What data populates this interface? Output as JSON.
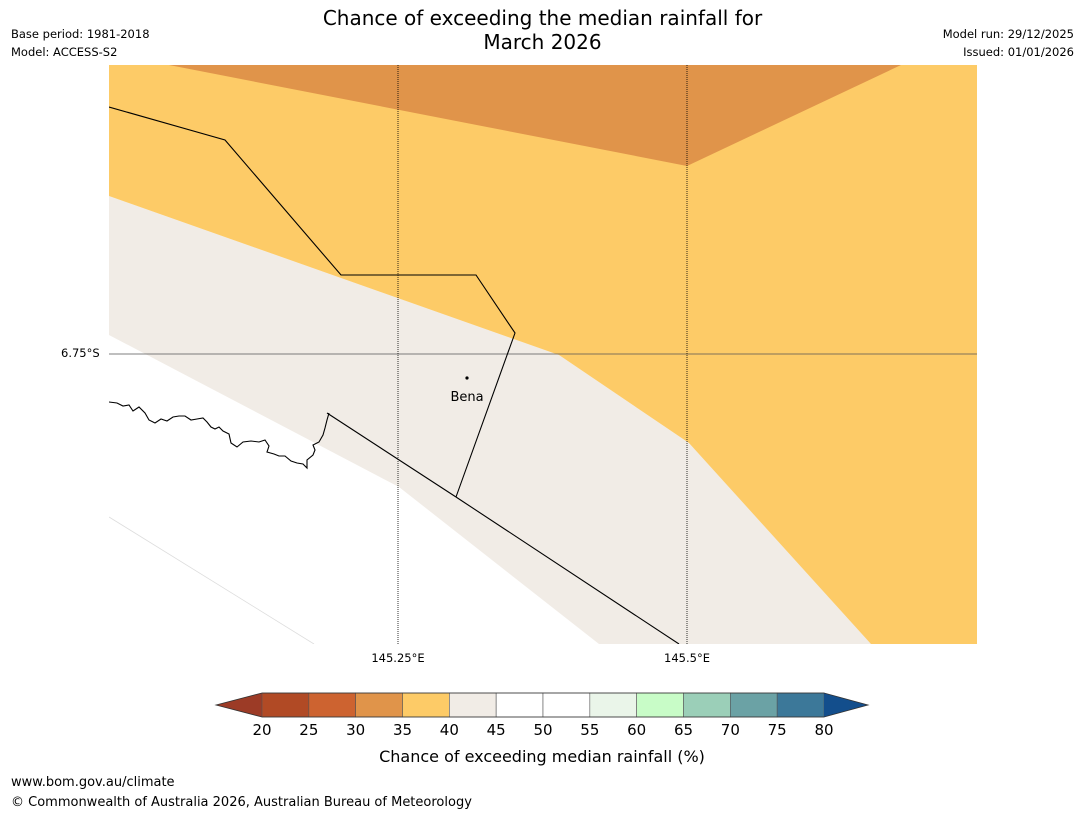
{
  "title": {
    "line1": "Chance of exceeding the median rainfall for",
    "line2": "March 2026"
  },
  "meta": {
    "base_period": "Base period: 1981-2018",
    "model": "Model: ACCESS-S2",
    "model_run": "Model run: 29/12/2025",
    "issued": "Issued: 01/01/2026"
  },
  "map": {
    "lat_label": "6.75°S",
    "lon_labels": [
      "145.25°E",
      "145.5°E"
    ],
    "place": "Bena"
  },
  "legend": {
    "ticks": [
      "20",
      "25",
      "30",
      "35",
      "40",
      "45",
      "50",
      "55",
      "60",
      "65",
      "70",
      "75",
      "80"
    ],
    "low_color": "#9c3b26",
    "high_color": "#134e8c",
    "colors": [
      "#b14a25",
      "#cd6330",
      "#e0944a",
      "#fdcb67",
      "#f1ece6",
      "#ffffff",
      "#ffffff",
      "#eaf5e9",
      "#c8fcc7",
      "#9bcfb8",
      "#6ba2a5",
      "#3c7899"
    ],
    "label": "Chance of exceeding median rainfall (%)"
  },
  "footer": {
    "url": "www.bom.gov.au/climate",
    "copyright": "© Commonwealth of Australia 2026, Australian Bureau of Meteorology"
  }
}
